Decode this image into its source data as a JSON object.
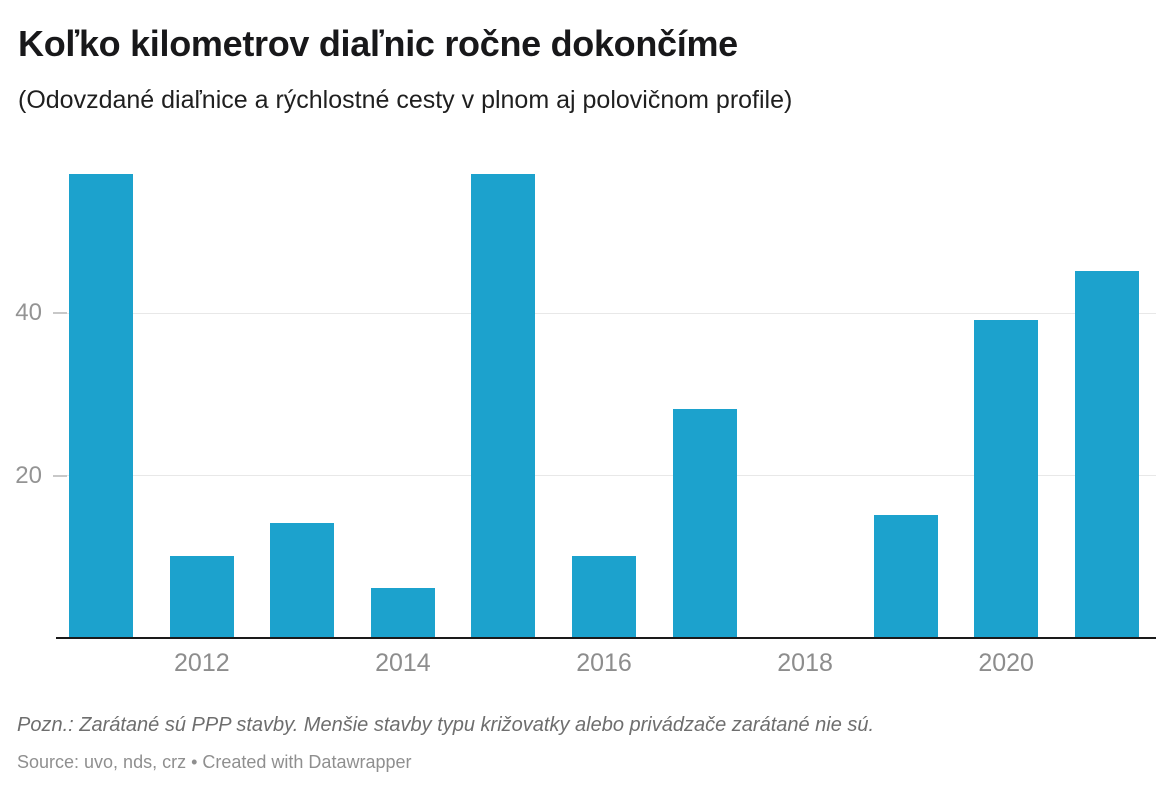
{
  "header": {
    "title": "Koľko kilometrov diaľnic ročne dokončíme",
    "subtitle": "(Odovzdané diaľnice a rýchlostné cesty v plnom aj polovičnom profile)"
  },
  "chart_data": {
    "type": "bar",
    "title": "Koľko kilometrov diaľnic ročne dokončíme",
    "subtitle": "(Odovzdané diaľnice a rýchlostné cesty v plnom aj polovičnom profile)",
    "categories": [
      "2011",
      "2012",
      "2013",
      "2014",
      "2015",
      "2016",
      "2017",
      "2018",
      "2019",
      "2020",
      "2021"
    ],
    "values": [
      57,
      10,
      14,
      6,
      57,
      10,
      28,
      0,
      15,
      39,
      45
    ],
    "xlabel": "",
    "ylabel": "",
    "x_tick_labels": [
      "2012",
      "2014",
      "2016",
      "2018",
      "2020"
    ],
    "y_ticks": [
      20,
      40
    ],
    "ylim": [
      0,
      60
    ],
    "grid": "horizontal",
    "legend": "none",
    "bar_color": "#1CA2CD"
  },
  "footer": {
    "note": "Pozn.: Zarátané sú PPP stavby. Menšie stavby typu križovatky alebo privádzače zarátané nie sú.",
    "source": "Source: uvo, nds, crz • Created with Datawrapper"
  },
  "colors": {
    "bar": "#1CA2CD",
    "baseline": "#1a1a1a",
    "gridline": "#e8e8e8",
    "tick": "#c8c8c8",
    "axis_text": "#8d8d8d",
    "title_text": "#18181a",
    "note_text": "#6e6e6e",
    "source_text": "#8f8f8f"
  }
}
